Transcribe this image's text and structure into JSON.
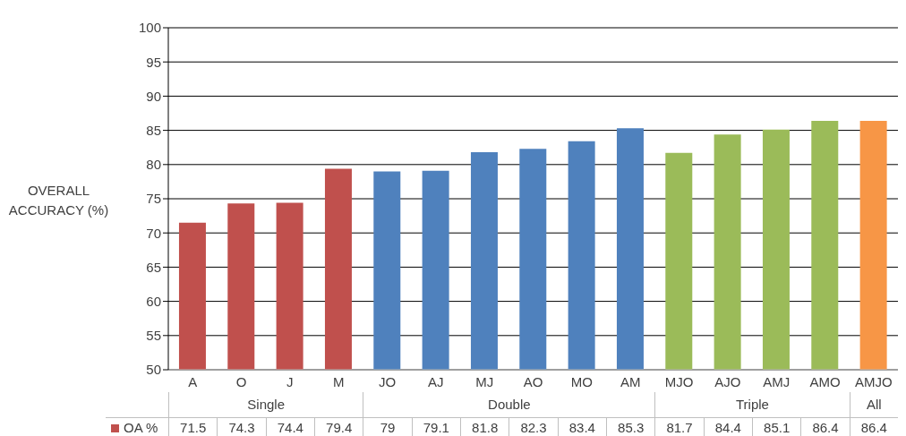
{
  "chart_data": {
    "type": "bar",
    "ylabel": "OVERALL ACCURACY (%)",
    "categories": [
      "A",
      "O",
      "J",
      "M",
      "JO",
      "AJ",
      "MJ",
      "AO",
      "MO",
      "AM",
      "MJO",
      "AJO",
      "AMJ",
      "AMO",
      "AMJO"
    ],
    "series": [
      {
        "name": "OA %",
        "color": "#c0504d",
        "values": [
          71.5,
          74.3,
          74.4,
          79.4,
          79,
          79.1,
          81.8,
          82.3,
          83.4,
          85.3,
          81.7,
          84.4,
          85.1,
          86.4,
          86.4
        ],
        "colors": [
          "#c0504d",
          "#c0504d",
          "#c0504d",
          "#c0504d",
          "#4f81bd",
          "#4f81bd",
          "#4f81bd",
          "#4f81bd",
          "#4f81bd",
          "#4f81bd",
          "#9bbb59",
          "#9bbb59",
          "#9bbb59",
          "#9bbb59",
          "#f79646"
        ]
      }
    ],
    "ylim": [
      50,
      100
    ],
    "yticks": [
      50,
      55,
      60,
      65,
      70,
      75,
      80,
      85,
      90,
      95,
      100
    ],
    "grid": "y",
    "legend": "bottom left",
    "data_labels": true,
    "annotations": [
      "Single",
      "Double",
      "Triple",
      "All"
    ]
  }
}
